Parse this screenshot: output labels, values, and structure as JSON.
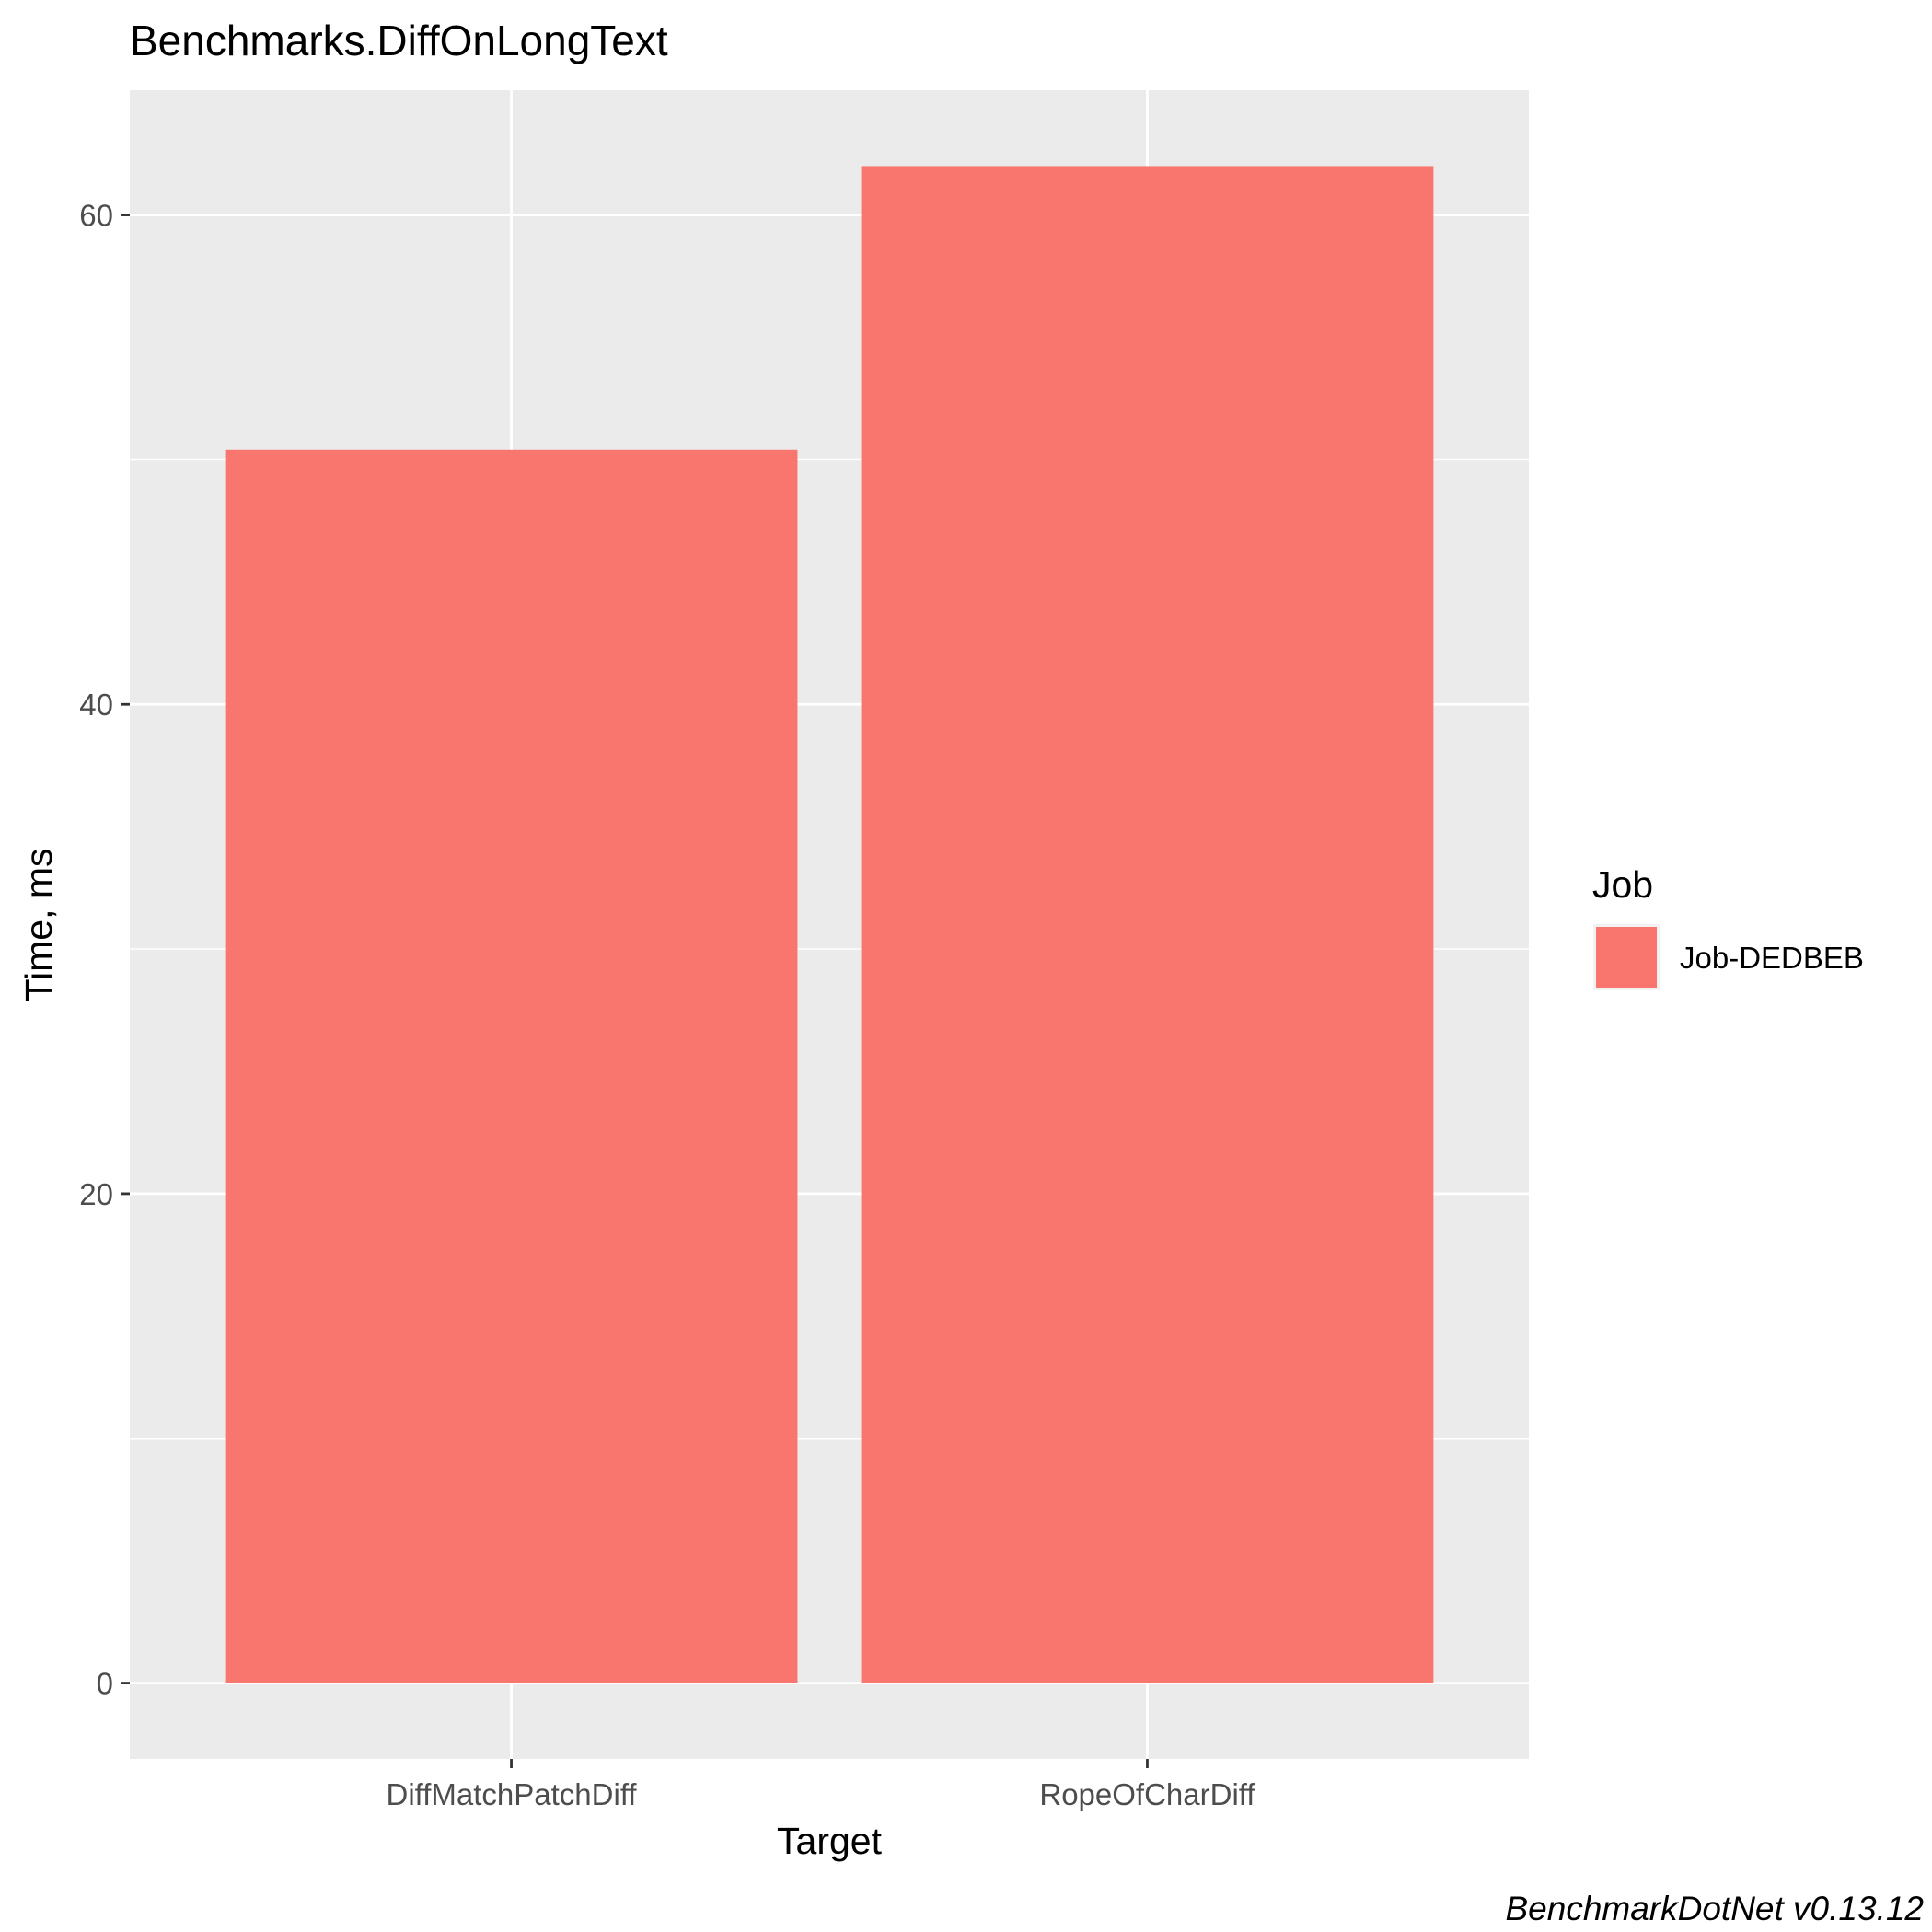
{
  "chart_data": {
    "type": "bar",
    "title": "Benchmarks.DiffOnLongText",
    "xlabel": "Target",
    "ylabel": "Time, ms",
    "categories": [
      "DiffMatchPatchDiff",
      "RopeOfCharDiff"
    ],
    "series": [
      {
        "name": "Job-DEDBEB",
        "values": [
          50.4,
          62.0
        ],
        "color": "#F8766D"
      }
    ],
    "ylim": [
      -3.1,
      65.1
    ],
    "yticks": [
      0,
      20,
      40,
      60
    ],
    "grid": true,
    "legend": {
      "title": "Job",
      "position": "right"
    },
    "panel_color": "#EBEBEB",
    "caption": "BenchmarkDotNet v0.13.12"
  }
}
